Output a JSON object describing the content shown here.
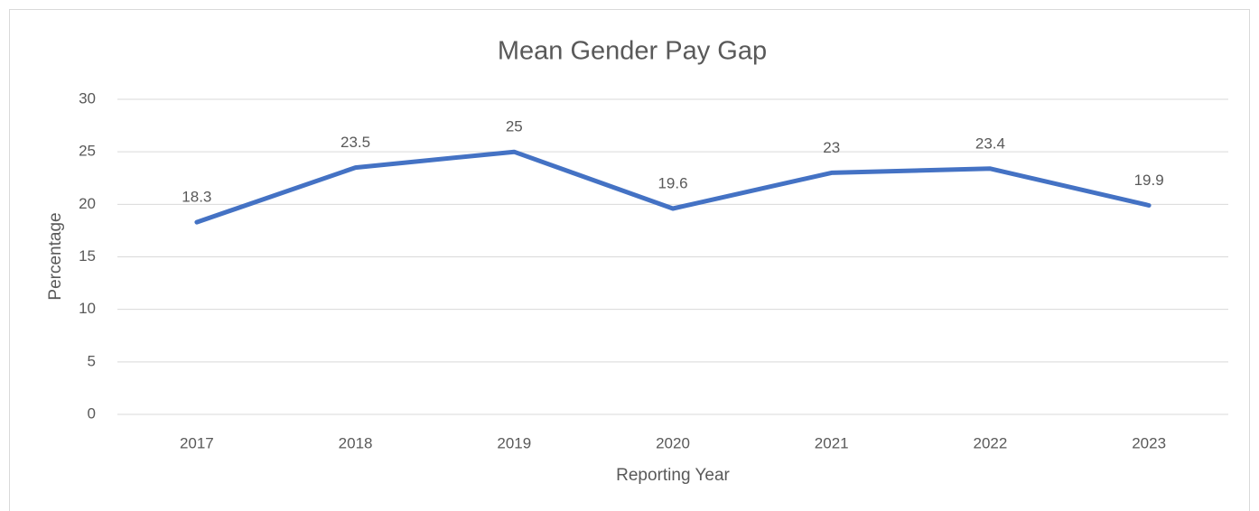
{
  "chart_data": {
    "type": "line",
    "title": "Mean Gender Pay Gap",
    "x_label": "Reporting Year",
    "y_label": "Percentage",
    "categories": [
      "2017",
      "2018",
      "2019",
      "2020",
      "2021",
      "2022",
      "2023"
    ],
    "values": [
      18.3,
      23.5,
      25,
      19.6,
      23,
      23.4,
      19.9
    ],
    "color": "#4472c4",
    "ylim": [
      0,
      30
    ],
    "yticks": [
      0,
      5,
      10,
      15,
      20,
      25,
      30
    ],
    "grid": true
  }
}
